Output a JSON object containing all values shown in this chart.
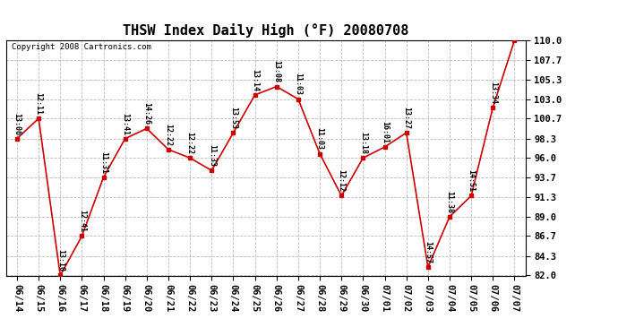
{
  "title": "THSW Index Daily High (°F) 20080708",
  "copyright": "Copyright 2008 Cartronics.com",
  "dates": [
    "06/14",
    "06/15",
    "06/16",
    "06/17",
    "06/18",
    "06/19",
    "06/20",
    "06/21",
    "06/22",
    "06/23",
    "06/24",
    "06/25",
    "06/26",
    "06/27",
    "06/28",
    "06/29",
    "06/30",
    "07/01",
    "07/02",
    "07/03",
    "07/04",
    "07/05",
    "07/06",
    "07/07"
  ],
  "values": [
    98.3,
    100.7,
    82.0,
    86.7,
    93.7,
    98.3,
    99.5,
    97.0,
    96.0,
    94.5,
    99.0,
    103.5,
    104.5,
    103.0,
    96.5,
    91.5,
    96.0,
    97.3,
    99.0,
    83.0,
    89.0,
    91.5,
    102.0,
    110.0
  ],
  "labels": [
    "13:06",
    "12:11",
    "13:10",
    "12:41",
    "11:31",
    "13:41",
    "14:26",
    "12:22",
    "12:22",
    "11:33",
    "13:53",
    "13:14",
    "13:08",
    "11:03",
    "11:03",
    "12:12",
    "13:18",
    "16:01",
    "13:27",
    "14:57",
    "11:38",
    "14:51",
    "13:34",
    ""
  ],
  "line_color": "#cc0000",
  "marker_color": "#cc0000",
  "bg_color": "#ffffff",
  "plot_bg_color": "#ffffff",
  "grid_color": "#bbbbbb",
  "title_color": "#000000",
  "label_color": "#000000",
  "ylim_min": 82.0,
  "ylim_max": 110.0,
  "yticks": [
    82.0,
    84.3,
    86.7,
    89.0,
    91.3,
    93.7,
    96.0,
    98.3,
    100.7,
    103.0,
    105.3,
    107.7,
    110.0
  ],
  "title_fontsize": 11,
  "label_fontsize": 6.0,
  "tick_fontsize": 7.5,
  "copyright_fontsize": 6.5
}
